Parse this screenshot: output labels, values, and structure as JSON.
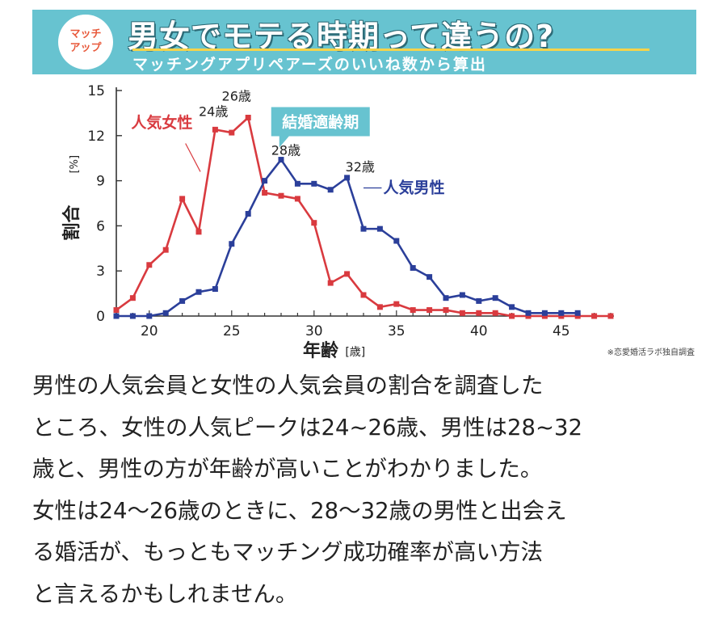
{
  "banner": {
    "badge": [
      "マッチ",
      "アップ"
    ],
    "title": "男女でモテる時期って違うの?",
    "subtitle": "マッチングアプリペアーズのいいね数から算出"
  },
  "colors": {
    "banner_bg": "#67c3d0",
    "female_line": "#d93a3f",
    "male_line": "#2b3f9a",
    "callout_bg": "#67c3d0",
    "underline": "#f5d34a"
  },
  "chart_data": {
    "type": "line",
    "x": [
      18,
      19,
      20,
      21,
      22,
      23,
      24,
      25,
      26,
      27,
      28,
      29,
      30,
      31,
      32,
      33,
      34,
      35,
      36,
      37,
      38,
      39,
      40,
      41,
      42,
      43,
      44,
      45,
      46,
      47,
      48
    ],
    "series": [
      {
        "name": "人気女性",
        "values": [
          0.4,
          1.2,
          3.4,
          4.4,
          7.8,
          5.6,
          12.4,
          12.2,
          13.2,
          8.2,
          8.0,
          7.8,
          6.2,
          2.2,
          2.8,
          1.4,
          0.6,
          0.8,
          0.4,
          0.4,
          0.4,
          0.2,
          0.2,
          0.2,
          0.0,
          0.0,
          0.0,
          0.0,
          0.0,
          0.0,
          0.0
        ]
      },
      {
        "name": "人気男性",
        "values": [
          0.0,
          0.0,
          0.0,
          0.2,
          1.0,
          1.6,
          1.8,
          4.8,
          6.8,
          9.0,
          10.4,
          8.8,
          8.8,
          8.4,
          9.2,
          5.8,
          5.8,
          5.0,
          3.2,
          2.6,
          1.2,
          1.4,
          1.0,
          1.2,
          0.6,
          0.2,
          0.2,
          0.2,
          0.2,
          null,
          null
        ]
      }
    ],
    "xlim": [
      18,
      48
    ],
    "ylim": [
      0,
      15
    ],
    "xticks": [
      20,
      25,
      30,
      35,
      40,
      45
    ],
    "yticks": [
      0,
      3,
      6,
      9,
      12,
      15
    ],
    "ylabel": "割合",
    "ylabel_unit": "[%]",
    "xlabel": "年齢",
    "xlabel_unit": "[歳]",
    "annotations": {
      "female_label": "人気女性",
      "male_label": "人気男性",
      "callout": "結婚適齢期",
      "f24": "24歳",
      "f26": "26歳",
      "m28": "28歳",
      "m32": "32歳"
    },
    "source": "※恋愛婚活ラボ独自調査",
    "grid": false
  },
  "paragraph": [
    "男性の人気会員と女性の人気会員の割合を調査した",
    "ところ、女性の人気ピークは24~26歳、男性は28~32",
    "歳と、男性の方が年齢が高いことがわかりました。",
    "女性は24〜26歳のときに、28〜32歳の男性と出会え",
    "る婚活が、もっともマッチング成功確率が高い方法",
    "と言えるかもしれません。"
  ]
}
